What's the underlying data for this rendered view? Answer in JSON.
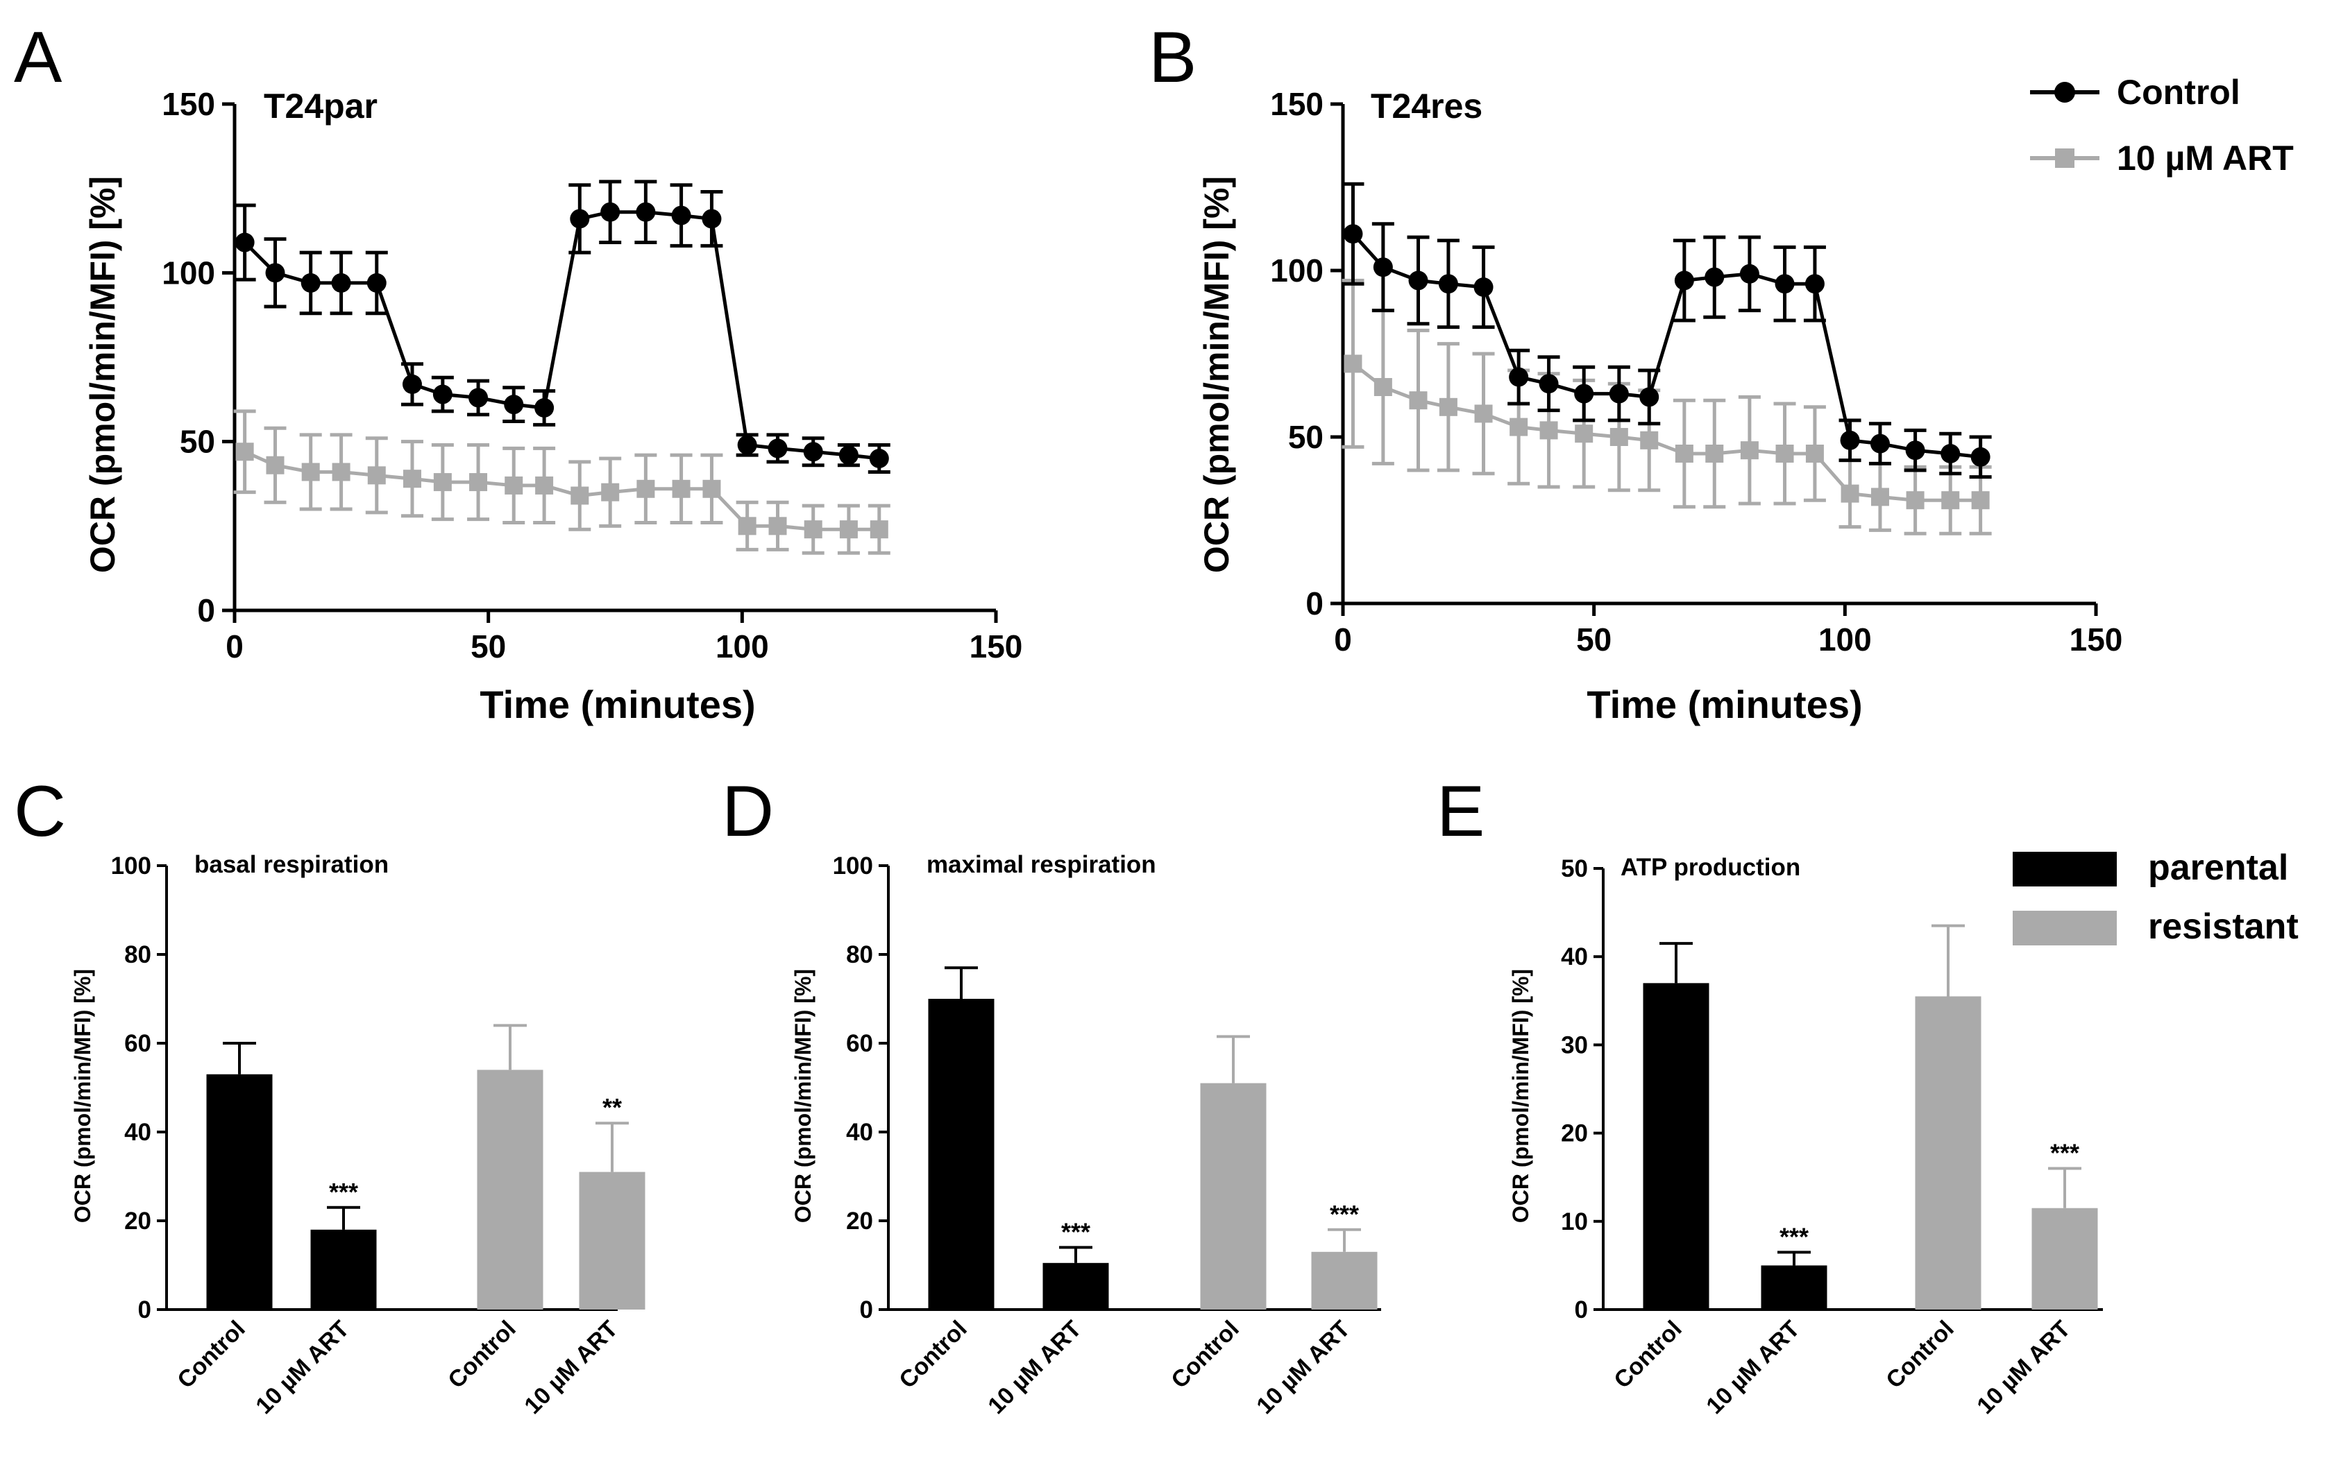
{
  "chart_data": [
    {
      "id": "A",
      "type": "line",
      "panel_label": "A",
      "title": "T24par",
      "xlabel": "Time (minutes)",
      "ylabel": "OCR (pmol/min/MFI) [%]",
      "xlim": [
        0,
        150
      ],
      "ylim": [
        0,
        150
      ],
      "xticks": [
        "0",
        "50",
        "100",
        "150"
      ],
      "yticks": [
        "0",
        "50",
        "100",
        "150"
      ],
      "x": [
        2,
        8,
        15,
        21,
        28,
        35,
        41,
        48,
        55,
        61,
        68,
        74,
        81,
        88,
        94,
        101,
        107,
        114,
        121,
        127
      ],
      "series": [
        {
          "name": "Control",
          "color": "#000000",
          "marker": "circle",
          "values": [
            109,
            100,
            97,
            97,
            97,
            67,
            64,
            63,
            61,
            60,
            116,
            118,
            118,
            117,
            116,
            49,
            48,
            47,
            46,
            45
          ],
          "errors": [
            11,
            10,
            9,
            9,
            9,
            6,
            5,
            5,
            5,
            5,
            10,
            9,
            9,
            9,
            8,
            3,
            4,
            4,
            3,
            4
          ]
        },
        {
          "name": "10 µM ART",
          "color": "#aaaaaa",
          "marker": "square",
          "values": [
            47,
            43,
            41,
            41,
            40,
            39,
            38,
            38,
            37,
            37,
            34,
            35,
            36,
            36,
            36,
            25,
            25,
            24,
            24,
            24
          ],
          "errors": [
            12,
            11,
            11,
            11,
            11,
            11,
            11,
            11,
            11,
            11,
            10,
            10,
            10,
            10,
            10,
            7,
            7,
            7,
            7,
            7
          ]
        }
      ]
    },
    {
      "id": "B",
      "type": "line",
      "panel_label": "B",
      "title": "T24res",
      "xlabel": "Time (minutes)",
      "ylabel": "OCR (pmol/min/MFI) [%]",
      "xlim": [
        0,
        150
      ],
      "ylim": [
        0,
        150
      ],
      "xticks": [
        "0",
        "50",
        "100",
        "150"
      ],
      "yticks": [
        "0",
        "50",
        "100",
        "150"
      ],
      "x": [
        2,
        8,
        15,
        21,
        28,
        35,
        41,
        48,
        55,
        61,
        68,
        74,
        81,
        88,
        94,
        101,
        107,
        114,
        121,
        127
      ],
      "series": [
        {
          "name": "Control",
          "color": "#000000",
          "marker": "circle",
          "values": [
            111,
            101,
            97,
            96,
            95,
            68,
            66,
            63,
            63,
            62,
            97,
            98,
            99,
            96,
            96,
            49,
            48,
            46,
            45,
            44
          ],
          "errors": [
            15,
            13,
            13,
            13,
            12,
            8,
            8,
            8,
            8,
            8,
            12,
            12,
            11,
            11,
            11,
            6,
            6,
            6,
            6,
            6
          ]
        },
        {
          "name": "10 µM ART",
          "color": "#aaaaaa",
          "marker": "square",
          "values": [
            72,
            65,
            61,
            59,
            57,
            53,
            52,
            51,
            50,
            49,
            45,
            45,
            46,
            45,
            45,
            33,
            32,
            31,
            31,
            31
          ],
          "errors": [
            25,
            23,
            21,
            19,
            18,
            17,
            17,
            16,
            16,
            15,
            16,
            16,
            16,
            15,
            14,
            10,
            10,
            10,
            10,
            10
          ]
        }
      ]
    },
    {
      "id": "C",
      "type": "bar",
      "panel_label": "C",
      "title": "basal respiration",
      "ylabel": "OCR (pmol/min/MFI) [%]",
      "ylim": [
        0,
        100
      ],
      "yticks": [
        "0",
        "20",
        "40",
        "60",
        "80",
        "100"
      ],
      "categories": [
        "Control",
        "10 µM ART",
        "Control",
        "10 µM ART"
      ],
      "groups": [
        "parental",
        "parental",
        "resistant",
        "resistant"
      ],
      "values": [
        53,
        18,
        54,
        31
      ],
      "errors": [
        7,
        5,
        10,
        11
      ],
      "significance": [
        "",
        "***",
        "",
        "**"
      ]
    },
    {
      "id": "D",
      "type": "bar",
      "panel_label": "D",
      "title": "maximal respiration",
      "ylabel": "OCR (pmol/min/MFI) [%]",
      "ylim": [
        0,
        100
      ],
      "yticks": [
        "0",
        "20",
        "40",
        "60",
        "80",
        "100"
      ],
      "categories": [
        "Control",
        "10 µM ART",
        "Control",
        "10 µM ART"
      ],
      "groups": [
        "parental",
        "parental",
        "resistant",
        "resistant"
      ],
      "values": [
        70,
        10.5,
        51,
        13
      ],
      "errors": [
        7,
        3.5,
        10.5,
        5
      ],
      "significance": [
        "",
        "***",
        "",
        "***"
      ]
    },
    {
      "id": "E",
      "type": "bar",
      "panel_label": "E",
      "title": "ATP production",
      "ylabel": "OCR (pmol/min/MFI) [%]",
      "ylim": [
        0,
        50
      ],
      "yticks": [
        "0",
        "10",
        "20",
        "30",
        "40",
        "50"
      ],
      "categories": [
        "Control",
        "10 µM ART",
        "Control",
        "10 µM ART"
      ],
      "groups": [
        "parental",
        "parental",
        "resistant",
        "resistant"
      ],
      "values": [
        37,
        5,
        35.5,
        11.5
      ],
      "errors": [
        4.5,
        1.5,
        8,
        4.5
      ],
      "significance": [
        "",
        "***",
        "",
        "***"
      ]
    }
  ],
  "legend_top": [
    {
      "label": "Control",
      "color": "#000000"
    },
    {
      "label": "10 µM ART",
      "color": "#aaaaaa"
    }
  ],
  "legend_bottom": [
    {
      "label": "parental",
      "color": "#000000"
    },
    {
      "label": "resistant",
      "color": "#aaaaaa"
    }
  ]
}
